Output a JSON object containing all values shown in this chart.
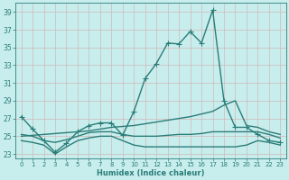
{
  "xlabel": "Humidex (Indice chaleur)",
  "ylabel": "",
  "xlim": [
    -0.5,
    23.5
  ],
  "ylim": [
    22.5,
    40.0
  ],
  "yticks": [
    23,
    25,
    27,
    29,
    31,
    33,
    35,
    37,
    39
  ],
  "xticks": [
    0,
    1,
    2,
    3,
    4,
    5,
    6,
    7,
    8,
    9,
    10,
    11,
    12,
    13,
    14,
    15,
    16,
    17,
    18,
    19,
    20,
    21,
    22,
    23
  ],
  "bg_color": "#c8eded",
  "grid_color": "#b0d8d8",
  "line_color": "#2a7d78",
  "lines": [
    {
      "x": [
        0,
        1,
        2,
        3,
        4,
        5,
        6,
        7,
        8,
        9,
        10,
        11,
        12,
        13,
        14,
        15,
        16,
        17,
        18,
        19,
        20,
        21,
        22,
        23
      ],
      "y": [
        27.2,
        25.8,
        24.5,
        23.2,
        24.2,
        25.5,
        26.2,
        26.5,
        26.5,
        25.1,
        27.8,
        31.5,
        33.2,
        35.5,
        35.4,
        36.8,
        35.5,
        39.2,
        29.0,
        26.0,
        26.0,
        25.2,
        24.5,
        24.3
      ],
      "marker": "+",
      "linewidth": 1.0,
      "markersize": 4
    },
    {
      "x": [
        0,
        1,
        2,
        3,
        4,
        5,
        6,
        7,
        8,
        9,
        10,
        11,
        12,
        13,
        14,
        15,
        16,
        17,
        18,
        19,
        20,
        21,
        22,
        23
      ],
      "y": [
        25.0,
        25.1,
        25.2,
        25.3,
        25.4,
        25.5,
        25.6,
        25.8,
        26.0,
        26.1,
        26.2,
        26.4,
        26.6,
        26.8,
        27.0,
        27.2,
        27.5,
        27.8,
        28.5,
        29.0,
        26.2,
        26.0,
        25.5,
        25.2
      ],
      "marker": null,
      "linewidth": 1.0,
      "markersize": 0
    },
    {
      "x": [
        0,
        1,
        2,
        3,
        4,
        5,
        6,
        7,
        8,
        9,
        10,
        11,
        12,
        13,
        14,
        15,
        16,
        17,
        18,
        19,
        20,
        21,
        22,
        23
      ],
      "y": [
        25.2,
        25.0,
        24.5,
        24.3,
        24.6,
        25.0,
        25.4,
        25.5,
        25.5,
        25.2,
        25.0,
        25.0,
        25.0,
        25.1,
        25.2,
        25.2,
        25.3,
        25.5,
        25.5,
        25.5,
        25.5,
        25.5,
        25.2,
        24.8
      ],
      "marker": null,
      "linewidth": 1.0,
      "markersize": 0
    },
    {
      "x": [
        0,
        1,
        2,
        3,
        4,
        5,
        6,
        7,
        8,
        9,
        10,
        11,
        12,
        13,
        14,
        15,
        16,
        17,
        18,
        19,
        20,
        21,
        22,
        23
      ],
      "y": [
        24.5,
        24.3,
        24.0,
        23.0,
        23.8,
        24.5,
        24.8,
        25.0,
        25.0,
        24.5,
        24.0,
        23.8,
        23.8,
        23.8,
        23.8,
        23.8,
        23.8,
        23.8,
        23.8,
        23.8,
        24.0,
        24.5,
        24.3,
        24.0
      ],
      "marker": null,
      "linewidth": 1.0,
      "markersize": 0
    }
  ]
}
